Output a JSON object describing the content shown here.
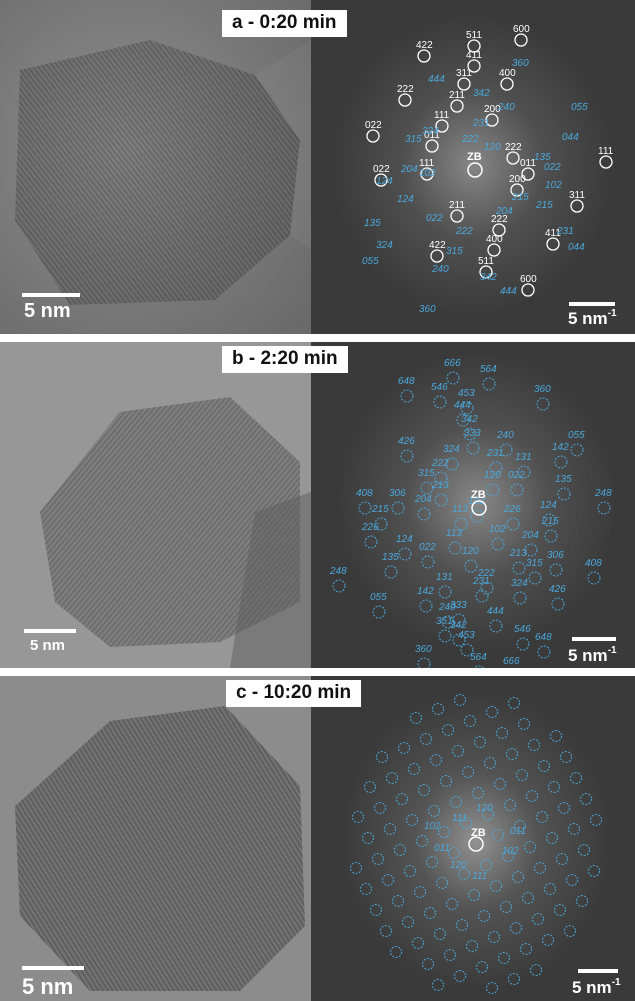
{
  "panels": [
    {
      "title": "a - 0:20 min",
      "tem_scale": "5 nm",
      "fft_scale_main": "5 nm",
      "fft_scale_exp": "-1",
      "zone_label": "ZB",
      "white_labels": [
        "600",
        "511",
        "411",
        "422",
        "400",
        "311",
        "222",
        "211",
        "200",
        "111",
        "022",
        "011",
        "222",
        "111",
        "011",
        "022",
        "111",
        "200",
        "211",
        "222",
        "311",
        "400",
        "411",
        "422",
        "511",
        "600"
      ],
      "blue_labels": [
        "360",
        "444",
        "342",
        "055",
        "240",
        "231",
        "324",
        "044",
        "315",
        "222",
        "120",
        "135",
        "204",
        "102",
        "022",
        "124",
        "215",
        "102",
        "204",
        "124",
        "022",
        "215",
        "222",
        "135",
        "231",
        "315",
        "044",
        "324",
        "240",
        "342",
        "055",
        "444",
        "360"
      ]
    },
    {
      "title": "b - 2:20 min",
      "tem_scale": "5 nm",
      "fft_scale_main": "5 nm",
      "fft_scale_exp": "-1",
      "zone_label": "ZB",
      "blue_labels": [
        "666",
        "564",
        "648",
        "546",
        "453",
        "360",
        "444",
        "342",
        "333",
        "240",
        "426",
        "324",
        "231",
        "131",
        "142",
        "055",
        "222",
        "120",
        "315",
        "213",
        "022",
        "135",
        "408",
        "306",
        "204",
        "102",
        "124",
        "248",
        "215",
        "113",
        "226",
        "226",
        "113",
        "215",
        "124",
        "102",
        "204",
        "306",
        "408",
        "248",
        "135",
        "022",
        "213",
        "315",
        "120",
        "222",
        "055",
        "131",
        "231",
        "324",
        "426",
        "142",
        "240",
        "333",
        "342",
        "444",
        "351",
        "546",
        "453",
        "648",
        "360",
        "564",
        "666"
      ]
    },
    {
      "title": "c - 10:20 min",
      "tem_scale": "5 nm",
      "fft_scale_main": "5 nm",
      "fft_scale_exp": "-1",
      "zone_label": "ZB",
      "blue_labels": [
        "111",
        "120",
        "102",
        "011",
        "011",
        "102",
        "120",
        "111"
      ]
    }
  ],
  "colors": {
    "spot_ring_white": "#ffffff",
    "index_blue": "#4aa8dc",
    "fft_background": "#3a3a3a",
    "tem_background": "#8f8f8f"
  }
}
